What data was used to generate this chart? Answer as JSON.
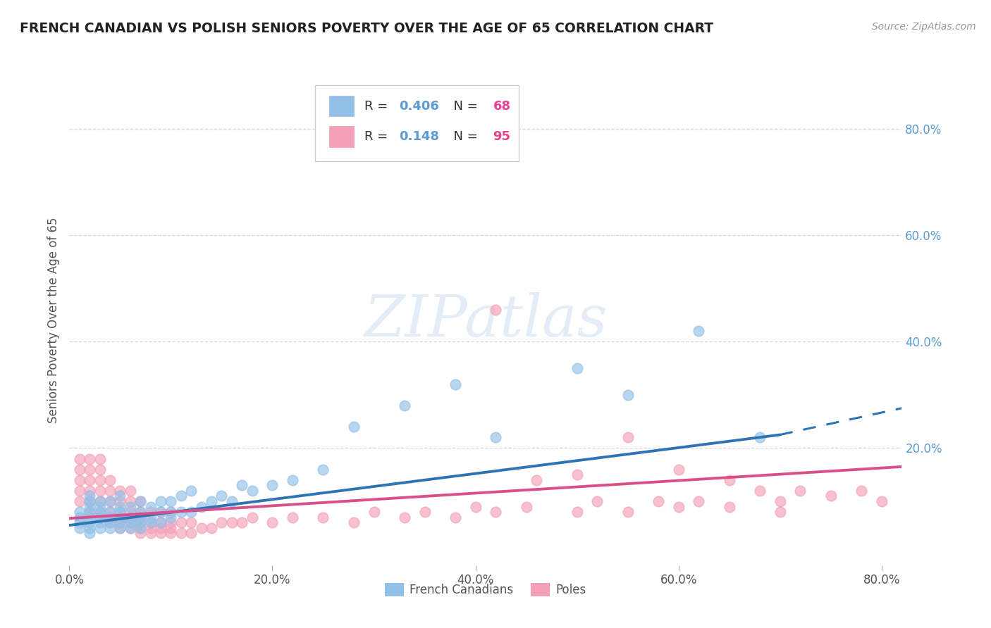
{
  "title": "FRENCH CANADIAN VS POLISH SENIORS POVERTY OVER THE AGE OF 65 CORRELATION CHART",
  "source": "Source: ZipAtlas.com",
  "ylabel": "Seniors Poverty Over the Age of 65",
  "xlim": [
    0.0,
    0.82
  ],
  "ylim": [
    -0.02,
    0.9
  ],
  "xtick_labels": [
    "0.0%",
    "20.0%",
    "40.0%",
    "60.0%",
    "80.0%"
  ],
  "xtick_vals": [
    0.0,
    0.2,
    0.4,
    0.6,
    0.8
  ],
  "ytick_vals": [
    0.2,
    0.4,
    0.6,
    0.8
  ],
  "right_ytick_labels": [
    "20.0%",
    "40.0%",
    "60.0%",
    "80.0%"
  ],
  "right_ytick_vals": [
    0.2,
    0.4,
    0.6,
    0.8
  ],
  "blue_R": 0.406,
  "blue_N": 68,
  "pink_R": 0.148,
  "pink_N": 95,
  "blue_color": "#92C0E8",
  "pink_color": "#F4A0B8",
  "blue_line_color": "#2E74B5",
  "pink_line_color": "#D94F8A",
  "background_color": "#FFFFFF",
  "grid_color": "#CCCCCC",
  "watermark": "ZIPatlas",
  "blue_scatter_x": [
    0.01,
    0.01,
    0.01,
    0.01,
    0.02,
    0.02,
    0.02,
    0.02,
    0.02,
    0.02,
    0.02,
    0.02,
    0.03,
    0.03,
    0.03,
    0.03,
    0.03,
    0.03,
    0.04,
    0.04,
    0.04,
    0.04,
    0.04,
    0.05,
    0.05,
    0.05,
    0.05,
    0.05,
    0.05,
    0.06,
    0.06,
    0.06,
    0.06,
    0.07,
    0.07,
    0.07,
    0.07,
    0.07,
    0.08,
    0.08,
    0.08,
    0.09,
    0.09,
    0.09,
    0.1,
    0.1,
    0.1,
    0.11,
    0.11,
    0.12,
    0.12,
    0.13,
    0.14,
    0.15,
    0.16,
    0.17,
    0.18,
    0.2,
    0.22,
    0.25,
    0.28,
    0.33,
    0.38,
    0.42,
    0.5,
    0.55,
    0.62,
    0.68
  ],
  "blue_scatter_y": [
    0.05,
    0.06,
    0.07,
    0.08,
    0.04,
    0.05,
    0.06,
    0.07,
    0.08,
    0.09,
    0.1,
    0.11,
    0.05,
    0.06,
    0.07,
    0.08,
    0.09,
    0.1,
    0.05,
    0.06,
    0.07,
    0.08,
    0.1,
    0.05,
    0.06,
    0.07,
    0.08,
    0.09,
    0.11,
    0.05,
    0.06,
    0.07,
    0.09,
    0.05,
    0.06,
    0.07,
    0.08,
    0.1,
    0.06,
    0.07,
    0.09,
    0.06,
    0.08,
    0.1,
    0.07,
    0.08,
    0.1,
    0.08,
    0.11,
    0.08,
    0.12,
    0.09,
    0.1,
    0.11,
    0.1,
    0.13,
    0.12,
    0.13,
    0.14,
    0.16,
    0.24,
    0.28,
    0.32,
    0.22,
    0.35,
    0.3,
    0.42,
    0.22
  ],
  "pink_scatter_x": [
    0.01,
    0.01,
    0.01,
    0.01,
    0.01,
    0.02,
    0.02,
    0.02,
    0.02,
    0.02,
    0.02,
    0.03,
    0.03,
    0.03,
    0.03,
    0.03,
    0.03,
    0.03,
    0.04,
    0.04,
    0.04,
    0.04,
    0.04,
    0.04,
    0.05,
    0.05,
    0.05,
    0.05,
    0.05,
    0.05,
    0.06,
    0.06,
    0.06,
    0.06,
    0.06,
    0.06,
    0.07,
    0.07,
    0.07,
    0.07,
    0.07,
    0.07,
    0.08,
    0.08,
    0.08,
    0.08,
    0.09,
    0.09,
    0.09,
    0.09,
    0.1,
    0.1,
    0.1,
    0.1,
    0.11,
    0.11,
    0.12,
    0.12,
    0.13,
    0.14,
    0.15,
    0.16,
    0.17,
    0.18,
    0.2,
    0.22,
    0.25,
    0.28,
    0.3,
    0.33,
    0.35,
    0.38,
    0.4,
    0.42,
    0.45,
    0.5,
    0.52,
    0.55,
    0.58,
    0.6,
    0.62,
    0.65,
    0.68,
    0.7,
    0.72,
    0.75,
    0.78,
    0.8,
    0.42,
    0.46,
    0.5,
    0.55,
    0.6,
    0.65,
    0.7
  ],
  "pink_scatter_y": [
    0.1,
    0.12,
    0.14,
    0.16,
    0.18,
    0.08,
    0.1,
    0.12,
    0.14,
    0.16,
    0.18,
    0.07,
    0.08,
    0.1,
    0.12,
    0.14,
    0.16,
    0.18,
    0.06,
    0.07,
    0.08,
    0.1,
    0.12,
    0.14,
    0.05,
    0.06,
    0.07,
    0.08,
    0.1,
    0.12,
    0.05,
    0.06,
    0.07,
    0.08,
    0.1,
    0.12,
    0.04,
    0.05,
    0.06,
    0.07,
    0.08,
    0.1,
    0.04,
    0.05,
    0.06,
    0.08,
    0.04,
    0.05,
    0.06,
    0.08,
    0.04,
    0.05,
    0.06,
    0.08,
    0.04,
    0.06,
    0.04,
    0.06,
    0.05,
    0.05,
    0.06,
    0.06,
    0.06,
    0.07,
    0.06,
    0.07,
    0.07,
    0.06,
    0.08,
    0.07,
    0.08,
    0.07,
    0.09,
    0.08,
    0.09,
    0.08,
    0.1,
    0.08,
    0.1,
    0.09,
    0.1,
    0.09,
    0.12,
    0.1,
    0.12,
    0.11,
    0.12,
    0.1,
    0.46,
    0.14,
    0.15,
    0.22,
    0.16,
    0.14,
    0.08
  ],
  "blue_trend_x0": 0.0,
  "blue_trend_x_solid_end": 0.7,
  "blue_trend_x_dash_end": 0.82,
  "blue_trend_y0": 0.055,
  "blue_trend_y_solid_end": 0.225,
  "blue_trend_y_dash_end": 0.275,
  "pink_trend_x0": 0.0,
  "pink_trend_x_end": 0.82,
  "pink_trend_y0": 0.068,
  "pink_trend_y_end": 0.165
}
